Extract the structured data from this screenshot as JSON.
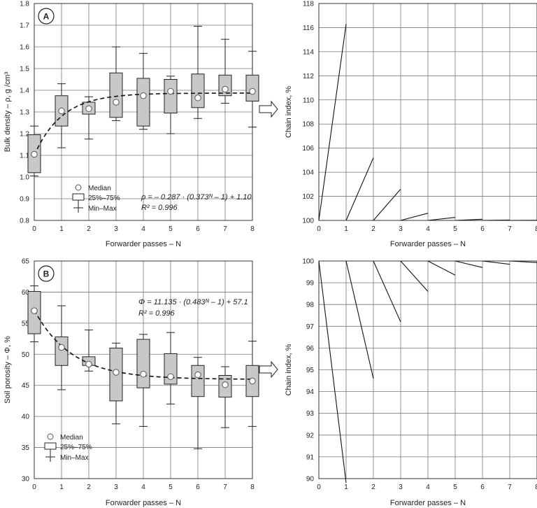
{
  "chart_data": [
    {
      "id": "A",
      "type": "box",
      "panel_label": "A",
      "xlabel": "Forwarder passes – N",
      "ylabel": "Bulk density – ρ, g /cm³",
      "ylim": [
        0.8,
        1.8
      ],
      "yticks": [
        "0.8",
        "0.9",
        "1.0",
        "1.1",
        "1.2",
        "1.3",
        "1.4",
        "1.5",
        "1.6",
        "1.7",
        "1.8"
      ],
      "xticks": [
        "0",
        "1",
        "2",
        "3",
        "4",
        "5",
        "6",
        "7",
        "8"
      ],
      "boxes": [
        {
          "n": 0,
          "min": 1.005,
          "q1": 1.02,
          "median": 1.105,
          "q3": 1.195,
          "max": 1.235
        },
        {
          "n": 1,
          "min": 1.135,
          "q1": 1.235,
          "median": 1.305,
          "q3": 1.375,
          "max": 1.43
        },
        {
          "n": 2,
          "min": 1.175,
          "q1": 1.29,
          "median": 1.315,
          "q3": 1.345,
          "max": 1.37
        },
        {
          "n": 3,
          "min": 1.26,
          "q1": 1.275,
          "median": 1.345,
          "q3": 1.48,
          "max": 1.6
        },
        {
          "n": 4,
          "min": 1.22,
          "q1": 1.235,
          "median": 1.375,
          "q3": 1.455,
          "max": 1.57
        },
        {
          "n": 5,
          "min": 1.2,
          "q1": 1.295,
          "median": 1.395,
          "q3": 1.45,
          "max": 1.465
        },
        {
          "n": 6,
          "min": 1.27,
          "q1": 1.32,
          "median": 1.365,
          "q3": 1.475,
          "max": 1.695
        },
        {
          "n": 7,
          "min": 1.34,
          "q1": 1.375,
          "median": 1.405,
          "q3": 1.47,
          "max": 1.635
        },
        {
          "n": 8,
          "min": 1.23,
          "q1": 1.35,
          "median": 1.395,
          "q3": 1.47,
          "max": 1.58
        }
      ],
      "fit": {
        "a": -0.287,
        "b": 0.373,
        "c": 1.1
      },
      "equation_line1": "ρ = – 0.287 · (0.373ᴺ – 1) + 1.10",
      "equation_line2": "R² = 0.996",
      "legend": [
        "Median",
        "25%–75%",
        "Min–Max"
      ]
    },
    {
      "id": "A-chain",
      "type": "line",
      "xlabel": "Forwarder passes – N",
      "ylabel": "Chain index, %",
      "ylim": [
        100,
        118
      ],
      "yticks": [
        "100",
        "102",
        "104",
        "106",
        "108",
        "110",
        "112",
        "114",
        "116",
        "118"
      ],
      "xticks": [
        "0",
        "1",
        "2",
        "3",
        "4",
        "5",
        "6",
        "7",
        "8"
      ],
      "segments": [
        [
          [
            0,
            100
          ],
          [
            1,
            116.3
          ]
        ],
        [
          [
            1,
            100
          ],
          [
            2,
            105.2
          ]
        ],
        [
          [
            2,
            100
          ],
          [
            3,
            102.6
          ]
        ],
        [
          [
            3,
            100
          ],
          [
            4,
            100.6
          ]
        ],
        [
          [
            4,
            100
          ],
          [
            5,
            100.25
          ]
        ],
        [
          [
            5,
            100
          ],
          [
            6,
            100.1
          ]
        ],
        [
          [
            6,
            100
          ],
          [
            7,
            100.03
          ]
        ],
        [
          [
            7,
            100
          ],
          [
            8,
            100.01
          ]
        ]
      ]
    },
    {
      "id": "B",
      "type": "box",
      "panel_label": "B",
      "xlabel": "Forwarder passes – N",
      "ylabel": "Soil porosity – Φ, %",
      "ylim": [
        30,
        65
      ],
      "yticks": [
        "30",
        "35",
        "40",
        "45",
        "50",
        "55",
        "60",
        "65"
      ],
      "xticks": [
        "0",
        "1",
        "2",
        "3",
        "4",
        "5",
        "6",
        "7",
        "8"
      ],
      "boxes": [
        {
          "n": 0,
          "min": 52.0,
          "q1": 53.3,
          "median": 57.0,
          "q3": 60.1,
          "max": 61.0
        },
        {
          "n": 1,
          "min": 44.3,
          "q1": 48.2,
          "median": 51.1,
          "q3": 52.8,
          "max": 57.8
        },
        {
          "n": 2,
          "min": 47.3,
          "q1": 48.2,
          "median": 48.4,
          "q3": 49.6,
          "max": 53.9
        },
        {
          "n": 3,
          "min": 38.8,
          "q1": 42.5,
          "median": 47.1,
          "q3": 51.0,
          "max": 51.8
        },
        {
          "n": 4,
          "min": 38.4,
          "q1": 44.6,
          "median": 46.8,
          "q3": 52.4,
          "max": 53.2
        },
        {
          "n": 5,
          "min": 42.0,
          "q1": 45.2,
          "median": 46.4,
          "q3": 50.1,
          "max": 53.5
        },
        {
          "n": 6,
          "min": 34.8,
          "q1": 43.2,
          "median": 46.7,
          "q3": 48.2,
          "max": 49.5
        },
        {
          "n": 7,
          "min": 38.2,
          "q1": 43.1,
          "median": 45.1,
          "q3": 46.6,
          "max": 48.0
        },
        {
          "n": 8,
          "min": 38.4,
          "q1": 43.2,
          "median": 45.7,
          "q3": 48.2,
          "max": 52.1
        }
      ],
      "fit": {
        "a": 11.135,
        "b": 0.483,
        "c": 57.1
      },
      "equation_line1": "Φ = 11.135 · (0.483ᴺ – 1) + 57.1",
      "equation_line2": "R² = 0.996",
      "legend": [
        "Median",
        "25%–75%",
        "Min–Max"
      ]
    },
    {
      "id": "B-chain",
      "type": "line",
      "xlabel": "Forwarder passes – N",
      "ylabel": "Chain index, %",
      "ylim": [
        90,
        100
      ],
      "yticks": [
        "90",
        "91",
        "92",
        "93",
        "94",
        "95",
        "96",
        "97",
        "98",
        "99",
        "100"
      ],
      "xticks": [
        "0",
        "1",
        "2",
        "3",
        "4",
        "5",
        "6",
        "7",
        "8"
      ],
      "segments": [
        [
          [
            0,
            100
          ],
          [
            1,
            89.8
          ]
        ],
        [
          [
            1,
            100
          ],
          [
            2,
            94.6
          ]
        ],
        [
          [
            2,
            100
          ],
          [
            3,
            97.2
          ]
        ],
        [
          [
            3,
            100
          ],
          [
            4,
            98.6
          ]
        ],
        [
          [
            4,
            100
          ],
          [
            5,
            99.35
          ]
        ],
        [
          [
            5,
            100
          ],
          [
            6,
            99.7
          ]
        ],
        [
          [
            6,
            100
          ],
          [
            7,
            99.85
          ]
        ],
        [
          [
            7,
            100
          ],
          [
            8,
            99.93
          ]
        ]
      ]
    }
  ]
}
